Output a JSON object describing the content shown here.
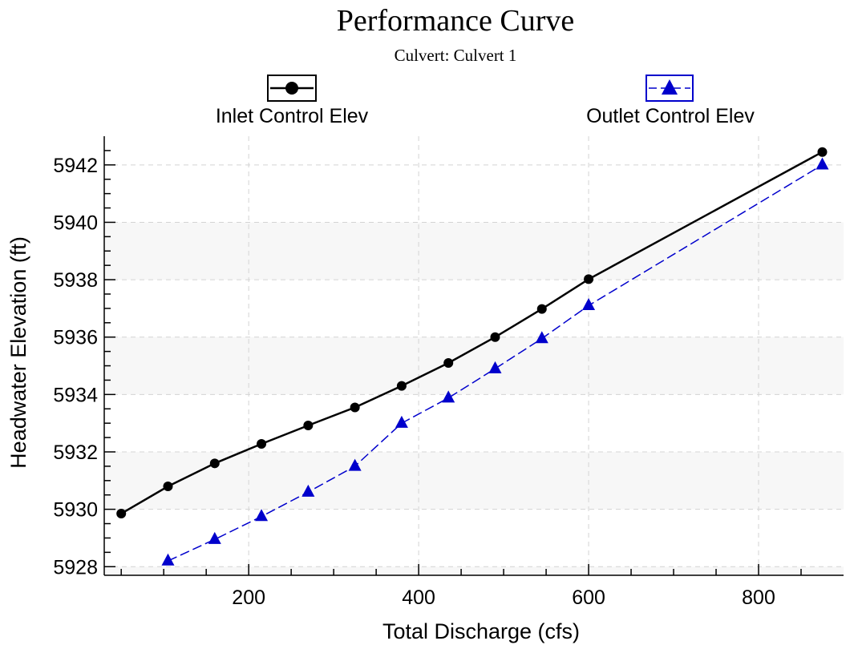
{
  "chart_data": {
    "type": "line",
    "title": "Performance Curve",
    "subtitle": "Culvert: Culvert 1",
    "xlabel": "Total Discharge (cfs)",
    "ylabel": "Headwater Elevation (ft)",
    "xlim": [
      30,
      900
    ],
    "ylim": [
      5927.7,
      5943.0
    ],
    "x_ticks": [
      200,
      400,
      600,
      800
    ],
    "y_ticks": [
      5928,
      5930,
      5932,
      5934,
      5936,
      5938,
      5940,
      5942
    ],
    "grid": true,
    "legend_position": "top",
    "series": [
      {
        "name": "Inlet Control Elev",
        "color": "#000000",
        "marker": "circle",
        "line_style": "solid",
        "x": [
          50,
          105,
          160,
          215,
          270,
          325,
          380,
          435,
          490,
          545,
          600,
          875
        ],
        "y": [
          5929.85,
          5930.8,
          5931.6,
          5932.28,
          5932.92,
          5933.55,
          5934.3,
          5935.1,
          5936.0,
          5936.98,
          5938.02,
          5942.45
        ]
      },
      {
        "name": "Outlet Control Elev",
        "color": "#0000cc",
        "marker": "triangle",
        "line_style": "dashed",
        "x": [
          105,
          160,
          215,
          270,
          325,
          380,
          435,
          490,
          545,
          600,
          875
        ],
        "y": [
          5928.2,
          5928.95,
          5929.75,
          5930.6,
          5931.5,
          5933.0,
          5933.88,
          5934.9,
          5935.95,
          5937.1,
          5942.0
        ]
      }
    ]
  }
}
